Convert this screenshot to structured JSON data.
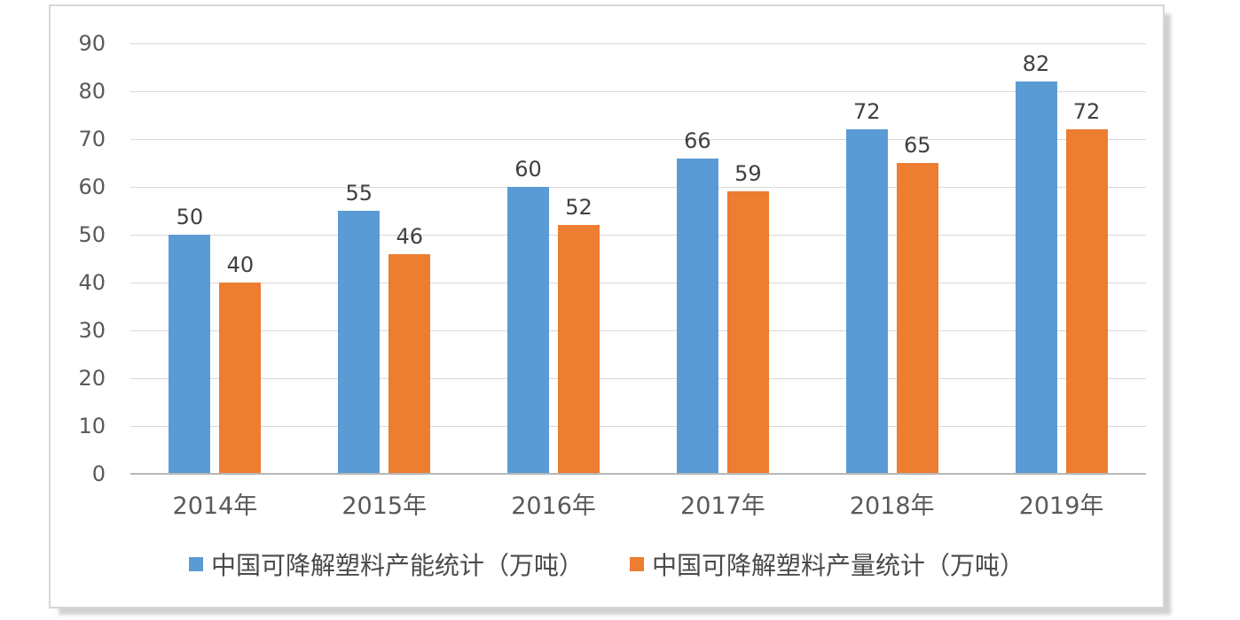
{
  "chart_data": {
    "type": "bar",
    "title": "",
    "categories": [
      "2014年",
      "2015年",
      "2016年",
      "2017年",
      "2018年",
      "2019年"
    ],
    "series": [
      {
        "name": "中国可降解塑料产能统计（万吨）",
        "color": "#5B9BD5",
        "values": [
          50,
          55,
          60,
          66,
          72,
          82
        ]
      },
      {
        "name": "中国可降解塑料产量统计（万吨）",
        "color": "#ED7D31",
        "values": [
          40,
          46,
          52,
          59,
          65,
          72
        ]
      }
    ],
    "xlabel": "",
    "ylabel": "",
    "ylim": [
      0,
      90
    ],
    "yticks": [
      0,
      10,
      20,
      30,
      40,
      50,
      60,
      70,
      80,
      90
    ],
    "grid": "horizontal",
    "data_labels": true,
    "legend_position": "bottom"
  },
  "colors": {
    "series_capacity": "#5B9BD5",
    "series_output": "#ED7D31",
    "gridline": "#d9d9d9",
    "axis_line": "#b7b7b7",
    "tick_text": "#595959",
    "data_label_text": "#404040",
    "legend_text": "#4a4a4a",
    "panel_border": "#d6d6d6",
    "panel_background": "#ffffff"
  }
}
